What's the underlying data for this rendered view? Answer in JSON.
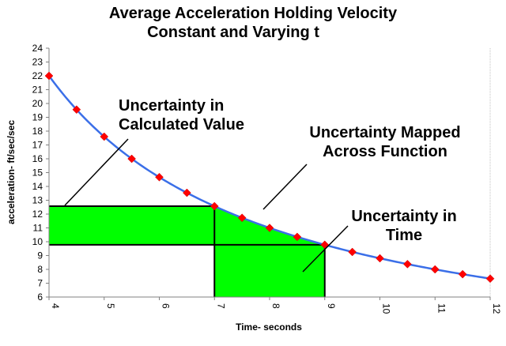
{
  "chart_data": {
    "type": "line",
    "title_line1": "Average Acceleration Holding Velocity",
    "title_line2": "Constant and Varying t",
    "xlabel": "Time- seconds",
    "ylabel": "acceleration- ft/sec/sec",
    "xlim": [
      4,
      12
    ],
    "ylim": [
      6,
      24
    ],
    "x_ticks": [
      4,
      5,
      6,
      7,
      8,
      9,
      10,
      11,
      12
    ],
    "y_ticks": [
      6,
      7,
      8,
      9,
      10,
      11,
      12,
      13,
      14,
      15,
      16,
      17,
      18,
      19,
      20,
      21,
      22,
      23,
      24
    ],
    "grid": false,
    "series": [
      {
        "name": "acceleration",
        "x": [
          4,
          4.5,
          5,
          5.5,
          6,
          6.5,
          7,
          7.5,
          8,
          8.5,
          9,
          9.5,
          10,
          10.5,
          11,
          11.5,
          12
        ],
        "y": [
          22,
          19.56,
          17.6,
          16,
          14.67,
          13.54,
          12.57,
          11.73,
          11,
          10.35,
          9.78,
          9.26,
          8.8,
          8.38,
          8,
          7.65,
          7.33
        ],
        "line_color": "#3b6fe8",
        "marker_color": "#ff0000"
      }
    ],
    "shaded_regions": {
      "time_range": [
        7,
        9
      ],
      "value_range": [
        9.78,
        12.57
      ],
      "fill_color": "#00ff00"
    },
    "annotations": [
      {
        "id": "calc",
        "line1": "Uncertainty in",
        "line2": "Calculated Value"
      },
      {
        "id": "mapped",
        "line1": "Uncertainty Mapped",
        "line2": "Across Function"
      },
      {
        "id": "time",
        "line1": "Uncertainty in",
        "line2": "Time"
      }
    ]
  }
}
